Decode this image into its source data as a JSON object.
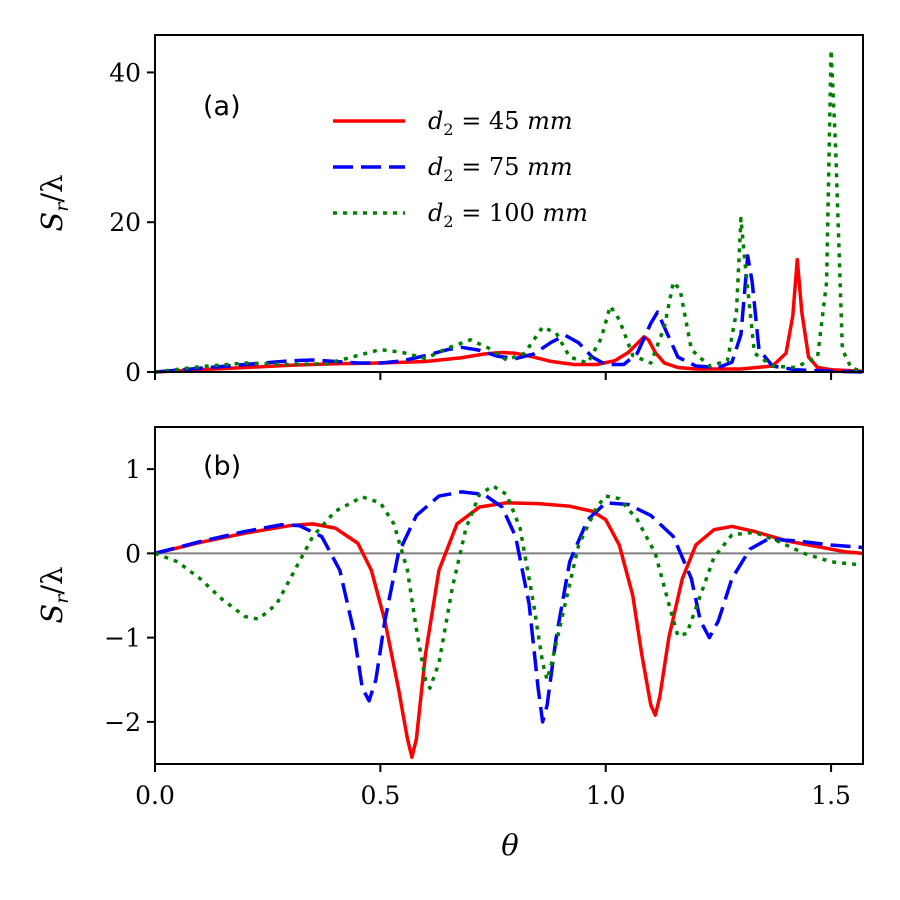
{
  "chart_data": [
    {
      "type": "line",
      "panel_label": "(a)",
      "ylabel": "S_r/λ",
      "ylim": [
        0,
        45
      ],
      "xlim": [
        0,
        1.5708
      ],
      "yticks": [
        0,
        20,
        40
      ],
      "xticks": [
        0.0,
        0.5,
        1.0,
        1.5
      ],
      "x_ticklabels_visible": false,
      "legend": {
        "position": "upper-center"
      },
      "series": [
        {
          "name": "d₂ = 45 mm",
          "name_parts": {
            "var": "d",
            "sub": "2",
            "eq": " = ",
            "num": "45 ",
            "unit": "mm"
          },
          "color": "#ff0000",
          "style": "solid",
          "points": [
            [
              0,
              0
            ],
            [
              0.1,
              0.3
            ],
            [
              0.2,
              0.6
            ],
            [
              0.3,
              0.9
            ],
            [
              0.4,
              1.1
            ],
            [
              0.5,
              1.2
            ],
            [
              0.6,
              1.4
            ],
            [
              0.68,
              1.9
            ],
            [
              0.73,
              2.4
            ],
            [
              0.77,
              2.6
            ],
            [
              0.8,
              2.5
            ],
            [
              0.84,
              2.0
            ],
            [
              0.88,
              1.4
            ],
            [
              0.93,
              1.0
            ],
            [
              0.98,
              1.0
            ],
            [
              1.02,
              1.5
            ],
            [
              1.05,
              2.6
            ],
            [
              1.07,
              3.8
            ],
            [
              1.085,
              4.7
            ],
            [
              1.095,
              4.3
            ],
            [
              1.11,
              2.6
            ],
            [
              1.13,
              1.2
            ],
            [
              1.16,
              0.6
            ],
            [
              1.2,
              0.4
            ],
            [
              1.3,
              0.4
            ],
            [
              1.37,
              0.8
            ],
            [
              1.4,
              2.5
            ],
            [
              1.415,
              7.5
            ],
            [
              1.425,
              15.0
            ],
            [
              1.435,
              8.0
            ],
            [
              1.45,
              2.0
            ],
            [
              1.47,
              0.6
            ],
            [
              1.5,
              0.3
            ],
            [
              1.5708,
              0.1
            ]
          ]
        },
        {
          "name": "d₂ = 75 mm",
          "name_parts": {
            "var": "d",
            "sub": "2",
            "eq": " = ",
            "num": "75 ",
            "unit": "mm"
          },
          "color": "#0000ff",
          "style": "dashed",
          "points": [
            [
              0,
              0
            ],
            [
              0.1,
              0.5
            ],
            [
              0.2,
              1.0
            ],
            [
              0.3,
              1.5
            ],
            [
              0.35,
              1.6
            ],
            [
              0.4,
              1.4
            ],
            [
              0.45,
              1.2
            ],
            [
              0.5,
              1.2
            ],
            [
              0.55,
              1.5
            ],
            [
              0.6,
              2.2
            ],
            [
              0.65,
              3.0
            ],
            [
              0.68,
              3.3
            ],
            [
              0.72,
              2.9
            ],
            [
              0.76,
              2.1
            ],
            [
              0.8,
              1.8
            ],
            [
              0.84,
              2.4
            ],
            [
              0.88,
              4.0
            ],
            [
              0.91,
              4.9
            ],
            [
              0.94,
              3.9
            ],
            [
              0.97,
              2.0
            ],
            [
              1.0,
              1.0
            ],
            [
              1.04,
              1.0
            ],
            [
              1.07,
              2.5
            ],
            [
              1.1,
              6.5
            ],
            [
              1.115,
              8.0
            ],
            [
              1.13,
              6.0
            ],
            [
              1.16,
              2.0
            ],
            [
              1.2,
              0.8
            ],
            [
              1.25,
              0.6
            ],
            [
              1.28,
              1.3
            ],
            [
              1.3,
              5.0
            ],
            [
              1.315,
              15.5
            ],
            [
              1.325,
              12.0
            ],
            [
              1.34,
              3.0
            ],
            [
              1.37,
              0.8
            ],
            [
              1.42,
              0.3
            ],
            [
              1.5,
              0.1
            ],
            [
              1.5708,
              0
            ]
          ]
        },
        {
          "name": "d₂ = 100 mm",
          "name_parts": {
            "var": "d",
            "sub": "2",
            "eq": " = ",
            "num": "100 ",
            "unit": "mm"
          },
          "color": "#007f00",
          "style": "dotted",
          "points": [
            [
              0,
              0
            ],
            [
              0.1,
              0.7
            ],
            [
              0.2,
              1.2
            ],
            [
              0.3,
              1.0
            ],
            [
              0.38,
              1.1
            ],
            [
              0.45,
              2.2
            ],
            [
              0.5,
              3.0
            ],
            [
              0.55,
              2.6
            ],
            [
              0.6,
              1.8
            ],
            [
              0.65,
              3.2
            ],
            [
              0.7,
              4.3
            ],
            [
              0.74,
              3.2
            ],
            [
              0.78,
              1.6
            ],
            [
              0.82,
              2.5
            ],
            [
              0.86,
              6.0
            ],
            [
              0.89,
              5.2
            ],
            [
              0.92,
              2.0
            ],
            [
              0.96,
              1.2
            ],
            [
              0.99,
              4.5
            ],
            [
              1.01,
              8.8
            ],
            [
              1.03,
              7.0
            ],
            [
              1.06,
              2.2
            ],
            [
              1.1,
              1.2
            ],
            [
              1.13,
              6.0
            ],
            [
              1.15,
              12.0
            ],
            [
              1.165,
              11.0
            ],
            [
              1.19,
              3.0
            ],
            [
              1.23,
              0.8
            ],
            [
              1.27,
              1.5
            ],
            [
              1.29,
              8.0
            ],
            [
              1.3,
              20.5
            ],
            [
              1.31,
              14.0
            ],
            [
              1.33,
              2.5
            ],
            [
              1.37,
              0.8
            ],
            [
              1.42,
              0.6
            ],
            [
              1.47,
              2.0
            ],
            [
              1.49,
              12.0
            ],
            [
              1.5,
              43.0
            ],
            [
              1.51,
              30.0
            ],
            [
              1.525,
              3.0
            ],
            [
              1.545,
              0.5
            ],
            [
              1.5708,
              0.1
            ]
          ]
        }
      ]
    },
    {
      "type": "line",
      "panel_label": "(b)",
      "ylabel": "S_r/λ",
      "xlabel": "θ",
      "ylim": [
        -2.5,
        1.5
      ],
      "xlim": [
        0,
        1.5708
      ],
      "yticks": [
        -2,
        -1,
        0,
        1
      ],
      "ytick_labels": [
        "−2",
        "−1",
        "0",
        "1"
      ],
      "xticks": [
        0.0,
        0.5,
        1.0,
        1.5
      ],
      "xtick_labels": [
        "0.0",
        "0.5",
        "1.0",
        "1.5"
      ],
      "zero_line": {
        "y": 0,
        "color": "#808080"
      },
      "series": [
        {
          "name": "d₂ = 45 mm",
          "color": "#ff0000",
          "style": "solid",
          "points": [
            [
              0,
              0
            ],
            [
              0.1,
              0.13
            ],
            [
              0.2,
              0.24
            ],
            [
              0.3,
              0.33
            ],
            [
              0.35,
              0.35
            ],
            [
              0.4,
              0.3
            ],
            [
              0.45,
              0.12
            ],
            [
              0.48,
              -0.2
            ],
            [
              0.51,
              -0.8
            ],
            [
              0.54,
              -1.6
            ],
            [
              0.56,
              -2.2
            ],
            [
              0.57,
              -2.42
            ],
            [
              0.58,
              -2.2
            ],
            [
              0.6,
              -1.2
            ],
            [
              0.63,
              -0.2
            ],
            [
              0.67,
              0.35
            ],
            [
              0.72,
              0.55
            ],
            [
              0.78,
              0.6
            ],
            [
              0.85,
              0.59
            ],
            [
              0.92,
              0.56
            ],
            [
              0.97,
              0.5
            ],
            [
              1.0,
              0.4
            ],
            [
              1.03,
              0.1
            ],
            [
              1.06,
              -0.5
            ],
            [
              1.08,
              -1.2
            ],
            [
              1.1,
              -1.8
            ],
            [
              1.11,
              -1.92
            ],
            [
              1.12,
              -1.7
            ],
            [
              1.14,
              -1.0
            ],
            [
              1.17,
              -0.3
            ],
            [
              1.2,
              0.1
            ],
            [
              1.24,
              0.28
            ],
            [
              1.28,
              0.32
            ],
            [
              1.33,
              0.26
            ],
            [
              1.4,
              0.15
            ],
            [
              1.47,
              0.08
            ],
            [
              1.53,
              0.02
            ],
            [
              1.5708,
              0.0
            ]
          ]
        },
        {
          "name": "d₂ = 75 mm",
          "color": "#0000ff",
          "style": "dashed",
          "points": [
            [
              0,
              0
            ],
            [
              0.1,
              0.14
            ],
            [
              0.2,
              0.26
            ],
            [
              0.28,
              0.34
            ],
            [
              0.32,
              0.33
            ],
            [
              0.37,
              0.2
            ],
            [
              0.41,
              -0.2
            ],
            [
              0.44,
              -0.9
            ],
            [
              0.46,
              -1.6
            ],
            [
              0.475,
              -1.75
            ],
            [
              0.49,
              -1.5
            ],
            [
              0.51,
              -0.8
            ],
            [
              0.54,
              0.0
            ],
            [
              0.58,
              0.45
            ],
            [
              0.63,
              0.68
            ],
            [
              0.68,
              0.73
            ],
            [
              0.73,
              0.7
            ],
            [
              0.77,
              0.55
            ],
            [
              0.8,
              0.2
            ],
            [
              0.83,
              -0.6
            ],
            [
              0.85,
              -1.6
            ],
            [
              0.86,
              -2.0
            ],
            [
              0.87,
              -1.8
            ],
            [
              0.89,
              -1.0
            ],
            [
              0.92,
              -0.1
            ],
            [
              0.96,
              0.4
            ],
            [
              1.0,
              0.6
            ],
            [
              1.05,
              0.58
            ],
            [
              1.1,
              0.45
            ],
            [
              1.15,
              0.2
            ],
            [
              1.19,
              -0.3
            ],
            [
              1.21,
              -0.8
            ],
            [
              1.23,
              -1.0
            ],
            [
              1.25,
              -0.8
            ],
            [
              1.28,
              -0.3
            ],
            [
              1.32,
              0.05
            ],
            [
              1.36,
              0.17
            ],
            [
              1.42,
              0.15
            ],
            [
              1.5,
              0.1
            ],
            [
              1.5708,
              0.07
            ]
          ]
        },
        {
          "name": "d₂ = 100 mm",
          "color": "#007f00",
          "style": "dotted",
          "points": [
            [
              0,
              0
            ],
            [
              0.05,
              -0.1
            ],
            [
              0.1,
              -0.3
            ],
            [
              0.15,
              -0.55
            ],
            [
              0.2,
              -0.75
            ],
            [
              0.23,
              -0.78
            ],
            [
              0.27,
              -0.6
            ],
            [
              0.31,
              -0.2
            ],
            [
              0.35,
              0.2
            ],
            [
              0.4,
              0.5
            ],
            [
              0.46,
              0.67
            ],
            [
              0.5,
              0.6
            ],
            [
              0.53,
              0.35
            ],
            [
              0.56,
              -0.2
            ],
            [
              0.58,
              -0.9
            ],
            [
              0.6,
              -1.5
            ],
            [
              0.61,
              -1.6
            ],
            [
              0.63,
              -1.3
            ],
            [
              0.66,
              -0.4
            ],
            [
              0.69,
              0.3
            ],
            [
              0.72,
              0.7
            ],
            [
              0.75,
              0.8
            ],
            [
              0.78,
              0.7
            ],
            [
              0.81,
              0.3
            ],
            [
              0.84,
              -0.6
            ],
            [
              0.86,
              -1.3
            ],
            [
              0.87,
              -1.5
            ],
            [
              0.88,
              -1.3
            ],
            [
              0.91,
              -0.6
            ],
            [
              0.94,
              0.1
            ],
            [
              0.98,
              0.55
            ],
            [
              1.0,
              0.68
            ],
            [
              1.03,
              0.65
            ],
            [
              1.07,
              0.4
            ],
            [
              1.11,
              0.0
            ],
            [
              1.14,
              -0.6
            ],
            [
              1.16,
              -0.98
            ],
            [
              1.18,
              -0.95
            ],
            [
              1.21,
              -0.5
            ],
            [
              1.24,
              -0.05
            ],
            [
              1.28,
              0.22
            ],
            [
              1.33,
              0.25
            ],
            [
              1.38,
              0.15
            ],
            [
              1.44,
              0.0
            ],
            [
              1.5,
              -0.1
            ],
            [
              1.5708,
              -0.14
            ]
          ]
        }
      ]
    }
  ]
}
